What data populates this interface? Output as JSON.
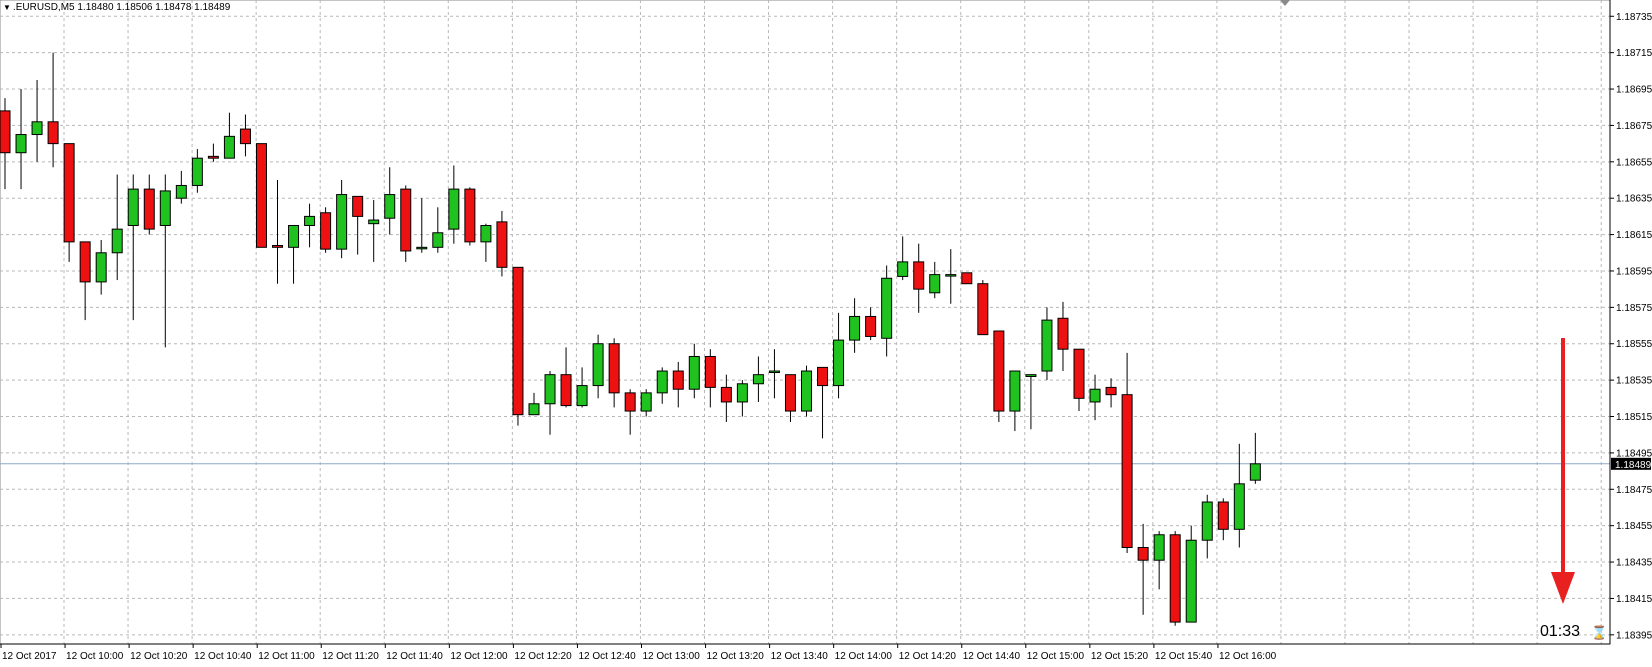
{
  "chart_data": {
    "type": "candlestick",
    "symbol_line": ".EURUSD,M5  1.18480 1.18506 1.18478 1.18489",
    "ylim": [
      1.18396,
      1.18739
    ],
    "y_ticks": [
      "1.18735",
      "1.18715",
      "1.18695",
      "1.18675",
      "1.18655",
      "1.18635",
      "1.18615",
      "1.18595",
      "1.18575",
      "1.18555",
      "1.18535",
      "1.18515",
      "1.18495",
      "1.18475",
      "1.18455",
      "1.18435",
      "1.18415",
      "1.18395"
    ],
    "x_ticks": [
      "12 Oct 2017",
      "12 Oct 10:00",
      "12 Oct 10:20",
      "12 Oct 10:40",
      "12 Oct 11:00",
      "12 Oct 11:20",
      "12 Oct 11:40",
      "12 Oct 12:00",
      "12 Oct 12:20",
      "12 Oct 12:40",
      "12 Oct 13:00",
      "12 Oct 13:20",
      "12 Oct 13:40",
      "12 Oct 14:00",
      "12 Oct 14:20",
      "12 Oct 14:40",
      "12 Oct 15:00",
      "12 Oct 15:20",
      "12 Oct 15:40",
      "12 Oct 16:00"
    ],
    "current_price": "1.18489",
    "timer": "01:33",
    "grid": true,
    "colors": {
      "up": "#1fc21f",
      "down": "#ee1111",
      "wick": "#000000",
      "grid": "#b8b8b8",
      "price_line": "#8fa8c8",
      "arrow": "#e82020",
      "price_tag_bg": "#000000"
    },
    "candles": [
      {
        "o": 1.18683,
        "h": 1.1869,
        "l": 1.1864,
        "c": 1.1866
      },
      {
        "o": 1.1866,
        "h": 1.18695,
        "l": 1.1864,
        "c": 1.1867
      },
      {
        "o": 1.1867,
        "h": 1.187,
        "l": 1.18655,
        "c": 1.18677
      },
      {
        "o": 1.18677,
        "h": 1.18715,
        "l": 1.18652,
        "c": 1.18665
      },
      {
        "o": 1.18665,
        "h": 1.18665,
        "l": 1.186,
        "c": 1.18611
      },
      {
        "o": 1.18611,
        "h": 1.18611,
        "l": 1.18568,
        "c": 1.18589
      },
      {
        "o": 1.18589,
        "h": 1.18612,
        "l": 1.18582,
        "c": 1.18605
      },
      {
        "o": 1.18605,
        "h": 1.18648,
        "l": 1.1859,
        "c": 1.18618
      },
      {
        "o": 1.1862,
        "h": 1.18648,
        "l": 1.18568,
        "c": 1.1864
      },
      {
        "o": 1.1864,
        "h": 1.18648,
        "l": 1.18615,
        "c": 1.18618
      },
      {
        "o": 1.1862,
        "h": 1.18648,
        "l": 1.18553,
        "c": 1.18639
      },
      {
        "o": 1.18635,
        "h": 1.1865,
        "l": 1.18632,
        "c": 1.18642
      },
      {
        "o": 1.18642,
        "h": 1.18662,
        "l": 1.18638,
        "c": 1.18657
      },
      {
        "o": 1.18658,
        "h": 1.18665,
        "l": 1.18655,
        "c": 1.18657
      },
      {
        "o": 1.18657,
        "h": 1.18682,
        "l": 1.18657,
        "c": 1.18669
      },
      {
        "o": 1.18673,
        "h": 1.18681,
        "l": 1.18658,
        "c": 1.18665
      },
      {
        "o": 1.18665,
        "h": 1.18665,
        "l": 1.18608,
        "c": 1.18608
      },
      {
        "o": 1.18609,
        "h": 1.18645,
        "l": 1.18588,
        "c": 1.18608
      },
      {
        "o": 1.18608,
        "h": 1.1862,
        "l": 1.18588,
        "c": 1.1862
      },
      {
        "o": 1.1862,
        "h": 1.18632,
        "l": 1.18608,
        "c": 1.18625
      },
      {
        "o": 1.18627,
        "h": 1.1863,
        "l": 1.18605,
        "c": 1.18607
      },
      {
        "o": 1.18607,
        "h": 1.18645,
        "l": 1.18602,
        "c": 1.18637
      },
      {
        "o": 1.18636,
        "h": 1.18636,
        "l": 1.18604,
        "c": 1.18625
      },
      {
        "o": 1.18621,
        "h": 1.18634,
        "l": 1.186,
        "c": 1.18623
      },
      {
        "o": 1.18624,
        "h": 1.18652,
        "l": 1.18615,
        "c": 1.18637
      },
      {
        "o": 1.1864,
        "h": 1.18642,
        "l": 1.186,
        "c": 1.18606
      },
      {
        "o": 1.18608,
        "h": 1.18635,
        "l": 1.18605,
        "c": 1.18608
      },
      {
        "o": 1.18608,
        "h": 1.1863,
        "l": 1.18605,
        "c": 1.18616
      },
      {
        "o": 1.18618,
        "h": 1.18653,
        "l": 1.1861,
        "c": 1.1864
      },
      {
        "o": 1.1864,
        "h": 1.18641,
        "l": 1.18609,
        "c": 1.18611
      },
      {
        "o": 1.18611,
        "h": 1.18621,
        "l": 1.186,
        "c": 1.1862
      },
      {
        "o": 1.18622,
        "h": 1.18628,
        "l": 1.18592,
        "c": 1.18597
      },
      {
        "o": 1.18597,
        "h": 1.18597,
        "l": 1.1851,
        "c": 1.18516
      },
      {
        "o": 1.18516,
        "h": 1.18528,
        "l": 1.18516,
        "c": 1.18522
      },
      {
        "o": 1.18522,
        "h": 1.1854,
        "l": 1.18505,
        "c": 1.18538
      },
      {
        "o": 1.18538,
        "h": 1.18553,
        "l": 1.1852,
        "c": 1.18521
      },
      {
        "o": 1.18521,
        "h": 1.18542,
        "l": 1.1852,
        "c": 1.18532
      },
      {
        "o": 1.18532,
        "h": 1.1856,
        "l": 1.18525,
        "c": 1.18555
      },
      {
        "o": 1.18555,
        "h": 1.18558,
        "l": 1.1852,
        "c": 1.18528
      },
      {
        "o": 1.18528,
        "h": 1.1853,
        "l": 1.18505,
        "c": 1.18518
      },
      {
        "o": 1.18518,
        "h": 1.1853,
        "l": 1.18515,
        "c": 1.18528
      },
      {
        "o": 1.18528,
        "h": 1.18542,
        "l": 1.18522,
        "c": 1.1854
      },
      {
        "o": 1.1854,
        "h": 1.18545,
        "l": 1.1852,
        "c": 1.1853
      },
      {
        "o": 1.1853,
        "h": 1.18555,
        "l": 1.18525,
        "c": 1.18548
      },
      {
        "o": 1.18548,
        "h": 1.18552,
        "l": 1.1852,
        "c": 1.18531
      },
      {
        "o": 1.18531,
        "h": 1.18538,
        "l": 1.18512,
        "c": 1.18523
      },
      {
        "o": 1.18523,
        "h": 1.18535,
        "l": 1.18515,
        "c": 1.18533
      },
      {
        "o": 1.18533,
        "h": 1.18548,
        "l": 1.18523,
        "c": 1.18538
      },
      {
        "o": 1.1854,
        "h": 1.18552,
        "l": 1.18525,
        "c": 1.1854
      },
      {
        "o": 1.18538,
        "h": 1.18538,
        "l": 1.18512,
        "c": 1.18518
      },
      {
        "o": 1.18518,
        "h": 1.18543,
        "l": 1.18515,
        "c": 1.1854
      },
      {
        "o": 1.18542,
        "h": 1.18542,
        "l": 1.18503,
        "c": 1.18532
      },
      {
        "o": 1.18532,
        "h": 1.18572,
        "l": 1.18525,
        "c": 1.18557
      },
      {
        "o": 1.18557,
        "h": 1.1858,
        "l": 1.1855,
        "c": 1.1857
      },
      {
        "o": 1.1857,
        "h": 1.18575,
        "l": 1.18557,
        "c": 1.18559
      },
      {
        "o": 1.18558,
        "h": 1.18598,
        "l": 1.18548,
        "c": 1.18591
      },
      {
        "o": 1.18592,
        "h": 1.18614,
        "l": 1.1859,
        "c": 1.186
      },
      {
        "o": 1.186,
        "h": 1.1861,
        "l": 1.18572,
        "c": 1.18585
      },
      {
        "o": 1.18583,
        "h": 1.186,
        "l": 1.1858,
        "c": 1.18593
      },
      {
        "o": 1.18593,
        "h": 1.18607,
        "l": 1.18577,
        "c": 1.18593
      },
      {
        "o": 1.18594,
        "h": 1.18594,
        "l": 1.18588,
        "c": 1.18588
      },
      {
        "o": 1.18588,
        "h": 1.1859,
        "l": 1.1856,
        "c": 1.1856
      },
      {
        "o": 1.18562,
        "h": 1.18562,
        "l": 1.18512,
        "c": 1.18518
      },
      {
        "o": 1.18518,
        "h": 1.1854,
        "l": 1.18507,
        "c": 1.1854
      },
      {
        "o": 1.18537,
        "h": 1.18538,
        "l": 1.18508,
        "c": 1.18538
      },
      {
        "o": 1.1854,
        "h": 1.18575,
        "l": 1.18535,
        "c": 1.18568
      },
      {
        "o": 1.18569,
        "h": 1.18578,
        "l": 1.1854,
        "c": 1.18552
      },
      {
        "o": 1.18552,
        "h": 1.18552,
        "l": 1.18518,
        "c": 1.18525
      },
      {
        "o": 1.18523,
        "h": 1.18538,
        "l": 1.18513,
        "c": 1.1853
      },
      {
        "o": 1.18531,
        "h": 1.18536,
        "l": 1.1852,
        "c": 1.18527
      },
      {
        "o": 1.18527,
        "h": 1.1855,
        "l": 1.1844,
        "c": 1.18443
      },
      {
        "o": 1.18443,
        "h": 1.18456,
        "l": 1.18406,
        "c": 1.18436
      },
      {
        "o": 1.18436,
        "h": 1.18452,
        "l": 1.1842,
        "c": 1.1845
      },
      {
        "o": 1.1845,
        "h": 1.18452,
        "l": 1.184,
        "c": 1.18402
      },
      {
        "o": 1.18402,
        "h": 1.18455,
        "l": 1.18402,
        "c": 1.18447
      },
      {
        "o": 1.18447,
        "h": 1.18472,
        "l": 1.18437,
        "c": 1.18468
      },
      {
        "o": 1.18468,
        "h": 1.1847,
        "l": 1.18447,
        "c": 1.18453
      },
      {
        "o": 1.18453,
        "h": 1.185,
        "l": 1.18443,
        "c": 1.18478
      },
      {
        "o": 1.1848,
        "h": 1.18506,
        "l": 1.18478,
        "c": 1.18489
      }
    ]
  }
}
